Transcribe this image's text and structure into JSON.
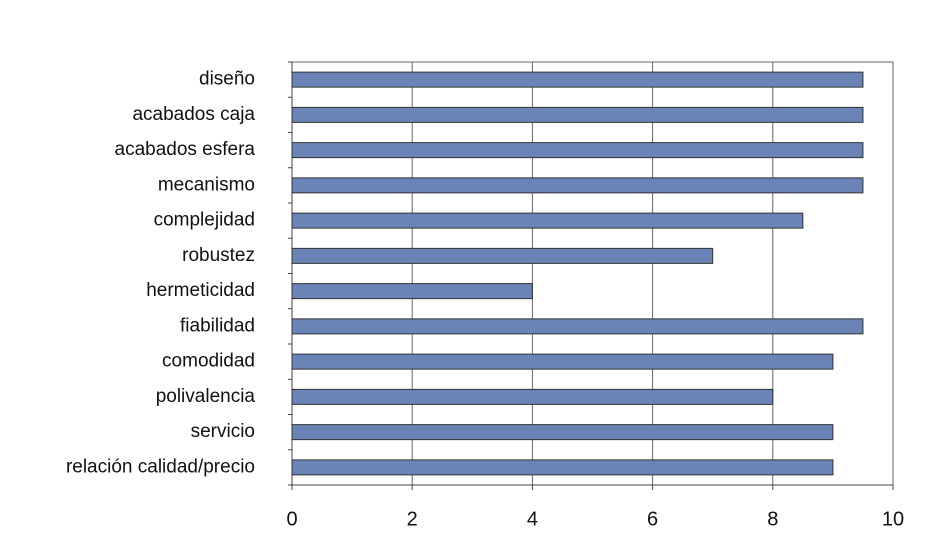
{
  "chart_data": {
    "type": "bar",
    "orientation": "horizontal",
    "categories": [
      "diseño",
      "acabados caja",
      "acabados esfera",
      "mecanismo",
      "complejidad",
      "robustez",
      "hermeticidad",
      "fiabilidad",
      "comodidad",
      "polivalencia",
      "servicio",
      "relación calidad/precio"
    ],
    "values": [
      9.5,
      9.5,
      9.5,
      9.5,
      8.5,
      7,
      4,
      9.5,
      9,
      8,
      9,
      9
    ],
    "color": "#6a84b7",
    "xlim": [
      0,
      10
    ],
    "xticks": [
      0,
      2,
      4,
      6,
      8,
      10
    ],
    "grid": true
  }
}
